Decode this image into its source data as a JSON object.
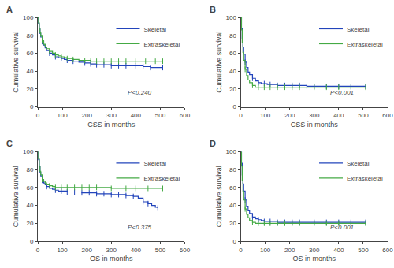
{
  "chart_data": [
    {
      "type": "step",
      "title": "A",
      "xlabel": "CSS in months",
      "ylabel": "Cumulative survival",
      "annotations": [
        "P<0.240"
      ],
      "xlim": [
        0,
        600
      ],
      "ylim": [
        0,
        100
      ],
      "xticks": [
        0,
        100,
        200,
        300,
        400,
        500,
        600
      ],
      "yticks": [
        0,
        20,
        40,
        60,
        80,
        100
      ],
      "grid": false,
      "legend": "upper right",
      "series": [
        {
          "name": "Skeletal",
          "color": "#2244bb",
          "x": [
            0,
            3,
            6,
            9,
            12,
            18,
            24,
            30,
            36,
            48,
            60,
            72,
            84,
            96,
            108,
            120,
            144,
            168,
            192,
            216,
            240,
            270,
            300,
            330,
            360,
            400,
            430,
            460,
            490,
            510
          ],
          "values": [
            100,
            93,
            87,
            82,
            78,
            73,
            69,
            66,
            63,
            60,
            58,
            56,
            55,
            54,
            53,
            52,
            51,
            50,
            49,
            48,
            47,
            47,
            46,
            46,
            46,
            46,
            45,
            44,
            44,
            44
          ],
          "censored": {
            "x": [
              18,
              48,
              72,
              96,
              120,
              144,
              192,
              216,
              240,
              270,
              300,
              330,
              360,
              400,
              430,
              460,
              510
            ],
            "y": [
              73,
              60,
              56,
              54,
              52,
              51,
              49,
              48,
              47,
              47,
              46,
              46,
              46,
              46,
              45,
              44,
              44
            ]
          }
        },
        {
          "name": "Extraskeletal",
          "color": "#44aa44",
          "x": [
            0,
            3,
            6,
            9,
            12,
            18,
            24,
            30,
            36,
            48,
            60,
            72,
            84,
            96,
            108,
            120,
            144,
            168,
            192,
            216,
            240,
            270,
            300,
            330,
            360,
            400,
            440,
            480,
            510
          ],
          "values": [
            100,
            94,
            88,
            83,
            79,
            74,
            70,
            67,
            65,
            62,
            60,
            58,
            57,
            56,
            55,
            54,
            53,
            52,
            52,
            51,
            51,
            51,
            51,
            51,
            51,
            51,
            51,
            51,
            51
          ],
          "censored": {
            "x": [
              18,
              48,
              72,
              96,
              120,
              144,
              192,
              216,
              240,
              270,
              300,
              330,
              360,
              400,
              440,
              480,
              510
            ],
            "y": [
              74,
              62,
              58,
              56,
              54,
              53,
              52,
              51,
              51,
              51,
              51,
              51,
              51,
              51,
              51,
              51,
              51
            ]
          }
        }
      ]
    },
    {
      "type": "step",
      "title": "B",
      "xlabel": "CSS in months",
      "ylabel": "Cumulative survival",
      "annotations": [
        "P<0.001"
      ],
      "xlim": [
        0,
        600
      ],
      "ylim": [
        0,
        100
      ],
      "xticks": [
        0,
        100,
        200,
        300,
        400,
        500,
        600
      ],
      "yticks": [
        0,
        20,
        40,
        60,
        80,
        100
      ],
      "grid": false,
      "legend": "upper right",
      "series": [
        {
          "name": "Skeletal",
          "color": "#2244bb",
          "x": [
            0,
            3,
            6,
            9,
            12,
            18,
            24,
            30,
            36,
            48,
            60,
            72,
            84,
            96,
            108,
            120,
            150,
            180,
            210,
            240,
            270,
            300,
            350,
            400,
            450,
            510
          ],
          "values": [
            100,
            88,
            76,
            67,
            59,
            50,
            44,
            39,
            36,
            32,
            29,
            27,
            26,
            26,
            25,
            25,
            24,
            24,
            24,
            24,
            23,
            23,
            23,
            23,
            23,
            23
          ],
          "censored": {
            "x": [
              18,
              48,
              72,
              96,
              120,
              150,
              180,
              210,
              240,
              270,
              300,
              350,
              400,
              450,
              510
            ],
            "y": [
              50,
              32,
              27,
              26,
              25,
              24,
              24,
              24,
              24,
              23,
              23,
              23,
              23,
              23,
              23
            ]
          }
        },
        {
          "name": "Extraskeletal",
          "color": "#44aa44",
          "x": [
            0,
            3,
            6,
            9,
            12,
            18,
            24,
            30,
            36,
            48,
            60,
            72,
            84,
            96,
            120,
            150,
            180,
            210,
            240,
            300,
            350,
            400,
            450,
            510
          ],
          "values": [
            100,
            86,
            72,
            61,
            52,
            42,
            35,
            30,
            27,
            24,
            22,
            22,
            22,
            22,
            22,
            22,
            22,
            22,
            22,
            22,
            22,
            22,
            22,
            22
          ],
          "censored": {
            "x": [
              18,
              48,
              72,
              96,
              120,
              150,
              180,
              210,
              240,
              300,
              350,
              400,
              450,
              510
            ],
            "y": [
              42,
              24,
              22,
              22,
              22,
              22,
              22,
              22,
              22,
              22,
              22,
              22,
              22,
              22
            ]
          }
        }
      ]
    },
    {
      "type": "step",
      "title": "C",
      "xlabel": "OS in months",
      "ylabel": "Cumulative survival",
      "annotations": [
        "P<0.375"
      ],
      "xlim": [
        0,
        600
      ],
      "ylim": [
        0,
        100
      ],
      "xticks": [
        0,
        100,
        200,
        300,
        400,
        500,
        600
      ],
      "yticks": [
        0,
        20,
        40,
        60,
        80,
        100
      ],
      "grid": false,
      "legend": "upper right",
      "series": [
        {
          "name": "Skeletal",
          "color": "#2244bb",
          "x": [
            0,
            3,
            6,
            9,
            12,
            18,
            24,
            30,
            36,
            48,
            60,
            72,
            84,
            96,
            120,
            150,
            180,
            210,
            240,
            270,
            300,
            330,
            360,
            390,
            410,
            430,
            450,
            465,
            480,
            490
          ],
          "values": [
            100,
            91,
            83,
            77,
            73,
            68,
            65,
            63,
            61,
            59,
            58,
            57,
            56,
            56,
            55,
            55,
            54,
            54,
            53,
            53,
            52,
            52,
            51,
            50,
            48,
            44,
            42,
            40,
            38,
            37
          ],
          "censored": {
            "x": [
              18,
              36,
              72,
              96,
              120,
              150,
              180,
              210,
              240,
              270,
              300,
              330,
              360,
              390,
              430,
              450,
              490
            ],
            "y": [
              68,
              61,
              57,
              56,
              55,
              55,
              54,
              54,
              53,
              53,
              52,
              52,
              51,
              50,
              44,
              42,
              37
            ]
          }
        },
        {
          "name": "Extraskeletal",
          "color": "#44aa44",
          "x": [
            0,
            3,
            6,
            9,
            12,
            18,
            24,
            30,
            36,
            48,
            60,
            72,
            84,
            96,
            120,
            150,
            180,
            210,
            240,
            300,
            360,
            400,
            450,
            510
          ],
          "values": [
            100,
            92,
            84,
            78,
            74,
            69,
            67,
            65,
            63,
            62,
            61,
            60,
            60,
            60,
            60,
            60,
            60,
            60,
            60,
            59,
            59,
            59,
            59,
            59
          ],
          "censored": {
            "x": [
              18,
              48,
              72,
              96,
              120,
              150,
              180,
              210,
              240,
              300,
              360,
              400,
              450,
              510
            ],
            "y": [
              69,
              62,
              60,
              60,
              60,
              60,
              60,
              60,
              60,
              59,
              59,
              59,
              59,
              59
            ]
          }
        }
      ]
    },
    {
      "type": "step",
      "title": "D",
      "xlabel": "OS in months",
      "ylabel": "Cumulative survival",
      "annotations": [
        "P<0.001"
      ],
      "xlim": [
        0,
        600
      ],
      "ylim": [
        0,
        100
      ],
      "xticks": [
        0,
        100,
        200,
        300,
        400,
        500,
        600
      ],
      "yticks": [
        0,
        20,
        40,
        60,
        80,
        100
      ],
      "grid": false,
      "legend": "upper right",
      "series": [
        {
          "name": "Skeletal",
          "color": "#2244bb",
          "x": [
            0,
            3,
            6,
            9,
            12,
            18,
            24,
            30,
            36,
            48,
            60,
            72,
            84,
            96,
            120,
            150,
            180,
            210,
            240,
            300,
            350,
            400,
            450,
            510
          ],
          "values": [
            100,
            87,
            74,
            64,
            56,
            46,
            39,
            34,
            31,
            27,
            25,
            24,
            23,
            22,
            22,
            21,
            21,
            21,
            21,
            21,
            21,
            21,
            21,
            21
          ],
          "censored": {
            "x": [
              18,
              48,
              72,
              96,
              120,
              150,
              180,
              210,
              240,
              300,
              350,
              400,
              450,
              510
            ],
            "y": [
              46,
              27,
              24,
              22,
              22,
              21,
              21,
              21,
              21,
              21,
              21,
              21,
              21,
              21
            ]
          }
        },
        {
          "name": "Extraskeletal",
          "color": "#44aa44",
          "x": [
            0,
            3,
            6,
            9,
            12,
            18,
            24,
            30,
            36,
            48,
            60,
            72,
            84,
            96,
            120,
            150,
            180,
            210,
            240,
            300,
            350,
            400,
            450,
            510
          ],
          "values": [
            100,
            84,
            68,
            56,
            46,
            36,
            30,
            26,
            23,
            21,
            20,
            20,
            20,
            20,
            20,
            20,
            20,
            20,
            20,
            20,
            20,
            20,
            20,
            20
          ],
          "censored": {
            "x": [
              18,
              48,
              72,
              96,
              120,
              150,
              180,
              210,
              240,
              300,
              350,
              400,
              450,
              510
            ],
            "y": [
              36,
              21,
              20,
              20,
              20,
              20,
              20,
              20,
              20,
              20,
              20,
              20,
              20,
              20
            ]
          }
        }
      ]
    }
  ]
}
